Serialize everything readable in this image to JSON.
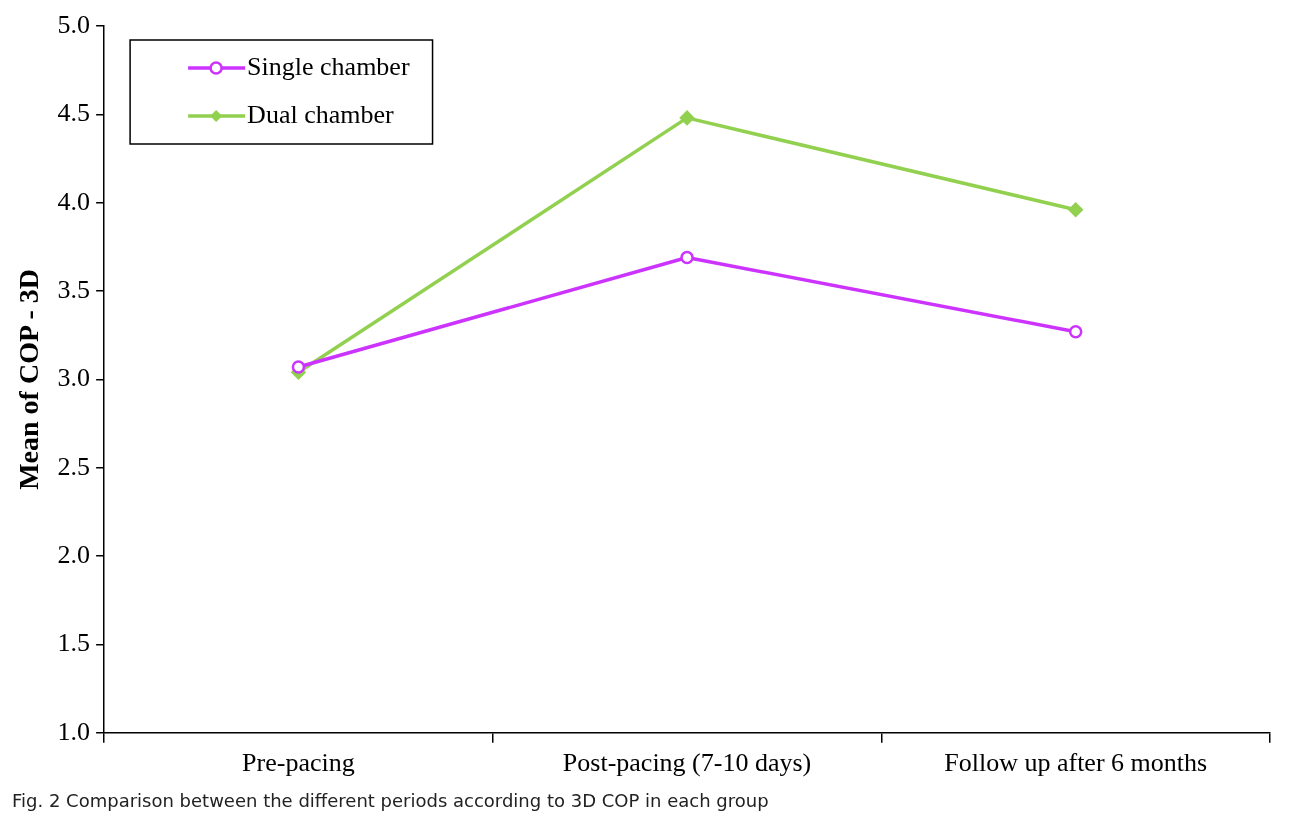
{
  "chart_data": {
    "type": "line",
    "ylabel": "Mean of COP - 3D",
    "categories": [
      "Pre-pacing",
      "Post-pacing (7-10 days)",
      "Follow up after 6 months"
    ],
    "series": [
      {
        "name": "Single chamber",
        "color": "#cc33ff",
        "marker": "circle",
        "values": [
          3.07,
          3.69,
          3.27
        ]
      },
      {
        "name": "Dual chamber",
        "color": "#92d050",
        "marker": "diamond",
        "values": [
          3.04,
          4.48,
          3.96
        ]
      }
    ],
    "ylim": [
      1.0,
      5.0
    ],
    "yticks": [
      {
        "value": 1,
        "label": "1.0"
      },
      {
        "value": 1.5,
        "label": "1.5"
      },
      {
        "value": 2,
        "label": "2.0"
      },
      {
        "value": 2.5,
        "label": "2.5"
      },
      {
        "value": 3,
        "label": "3.0"
      },
      {
        "value": 3.5,
        "label": "3.5"
      },
      {
        "value": 4,
        "label": "4.0"
      },
      {
        "value": 4.5,
        "label": "4.5"
      },
      {
        "value": 5,
        "label": "5.0"
      }
    ],
    "grid": false,
    "legend": "top left",
    "line_style": "solid",
    "annotations": [
      "Fig. 2 Comparison between the different periods according to 3D COP in each group"
    ]
  }
}
